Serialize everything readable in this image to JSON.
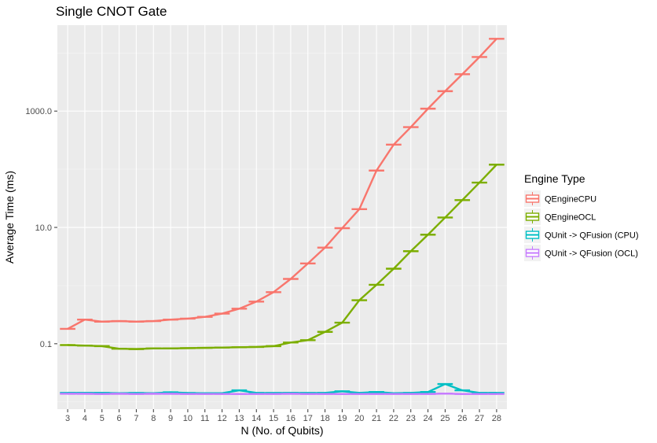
{
  "chart_data": {
    "type": "line",
    "title": "Single CNOT Gate",
    "xlabel": "N (No. of Qubits)",
    "ylabel": "Average Time (ms)",
    "yscale": "log10",
    "ylim": [
      0.0075,
      30000
    ],
    "y_ticks": [
      0.1,
      10.0,
      1000.0
    ],
    "y_tick_labels": [
      "0.1",
      "10.0",
      "1000.0"
    ],
    "categories": [
      3,
      4,
      5,
      6,
      7,
      8,
      9,
      10,
      11,
      12,
      13,
      14,
      15,
      16,
      17,
      18,
      19,
      20,
      21,
      22,
      23,
      24,
      25,
      26,
      27,
      28
    ],
    "legend_title": "Engine Type",
    "legend_position": "right",
    "series": [
      {
        "name": "QEngineCPU",
        "color": "#F8766D",
        "values": [
          0.18,
          0.26,
          0.24,
          0.245,
          0.24,
          0.245,
          0.26,
          0.27,
          0.29,
          0.33,
          0.4,
          0.53,
          0.77,
          1.3,
          2.4,
          4.5,
          9.7,
          20.6,
          95,
          265,
          530,
          1100,
          2200,
          4300,
          8500,
          17500
        ]
      },
      {
        "name": "QEngineOCL",
        "color": "#7CAE00",
        "values": [
          0.095,
          0.093,
          0.091,
          0.082,
          0.081,
          0.083,
          0.083,
          0.084,
          0.085,
          0.086,
          0.087,
          0.088,
          0.091,
          0.105,
          0.115,
          0.16,
          0.23,
          0.56,
          1.03,
          1.95,
          3.9,
          7.5,
          14.8,
          29.5,
          59,
          120
        ]
      },
      {
        "name": "QUnit -> QFusion (CPU)",
        "color": "#00BFC4",
        "values": [
          0.0143,
          0.0143,
          0.0143,
          0.0141,
          0.0142,
          0.0141,
          0.0146,
          0.0142,
          0.0141,
          0.0141,
          0.0158,
          0.0143,
          0.0142,
          0.0143,
          0.0142,
          0.0143,
          0.0152,
          0.0143,
          0.0148,
          0.0141,
          0.0143,
          0.0148,
          0.0203,
          0.0158,
          0.0143,
          0.0143
        ]
      },
      {
        "name": "QUnit -> QFusion (OCL)",
        "color": "#C77CFF",
        "values": [
          0.0138,
          0.0138,
          0.0137,
          0.0138,
          0.0137,
          0.0138,
          0.0138,
          0.0137,
          0.0137,
          0.0137,
          0.0137,
          0.0137,
          0.0137,
          0.0138,
          0.0137,
          0.0137,
          0.0137,
          0.0137,
          0.0137,
          0.0137,
          0.0137,
          0.0137,
          0.0139,
          0.0137,
          0.0137,
          0.0137
        ]
      }
    ]
  }
}
